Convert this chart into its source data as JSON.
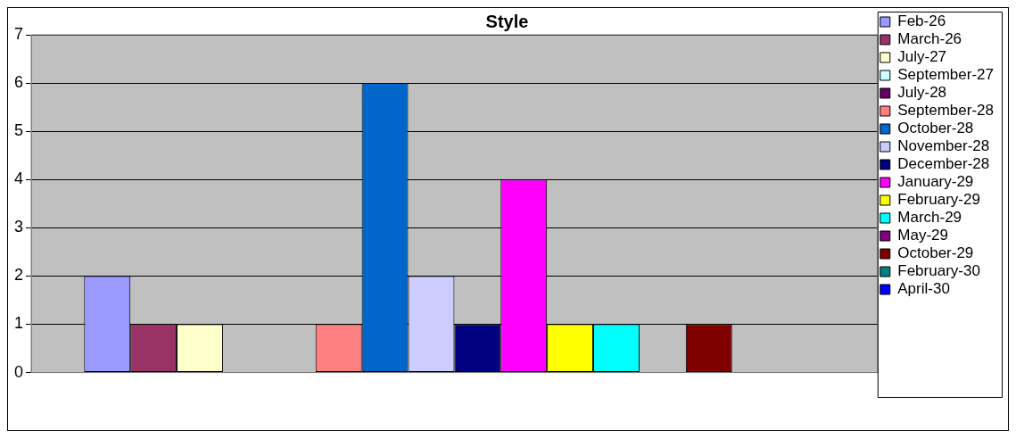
{
  "chart_data": {
    "type": "bar",
    "title": "Style",
    "categories": [
      null
    ],
    "series": [
      {
        "name": "Feb-26",
        "color": "#9999ff",
        "values": [
          2
        ]
      },
      {
        "name": "March-26",
        "color": "#993366",
        "values": [
          1
        ]
      },
      {
        "name": "July-27",
        "color": "#ffffcc",
        "values": [
          1
        ]
      },
      {
        "name": "September-27",
        "color": "#ccffff",
        "values": [
          0
        ]
      },
      {
        "name": "July-28",
        "color": "#660066",
        "values": [
          0
        ]
      },
      {
        "name": "September-28",
        "color": "#ff8080",
        "values": [
          1
        ]
      },
      {
        "name": "October-28",
        "color": "#0066cc",
        "values": [
          6
        ]
      },
      {
        "name": "November-28",
        "color": "#ccccff",
        "values": [
          2
        ]
      },
      {
        "name": "December-28",
        "color": "#000080",
        "values": [
          1
        ]
      },
      {
        "name": "January-29",
        "color": "#ff00ff",
        "values": [
          4
        ]
      },
      {
        "name": "February-29",
        "color": "#ffff00",
        "values": [
          1
        ]
      },
      {
        "name": "March-29",
        "color": "#00ffff",
        "values": [
          1
        ]
      },
      {
        "name": "May-29",
        "color": "#800080",
        "values": [
          0
        ]
      },
      {
        "name": "October-29",
        "color": "#800000",
        "values": [
          1
        ]
      },
      {
        "name": "February-30",
        "color": "#008080",
        "values": [
          0
        ]
      },
      {
        "name": "April-30",
        "color": "#0000ff",
        "values": [
          0
        ]
      }
    ],
    "ylim": [
      0,
      7
    ],
    "yticks": [
      0,
      1,
      2,
      3,
      4,
      5,
      6,
      7
    ],
    "grid": "y",
    "legend": "right"
  }
}
